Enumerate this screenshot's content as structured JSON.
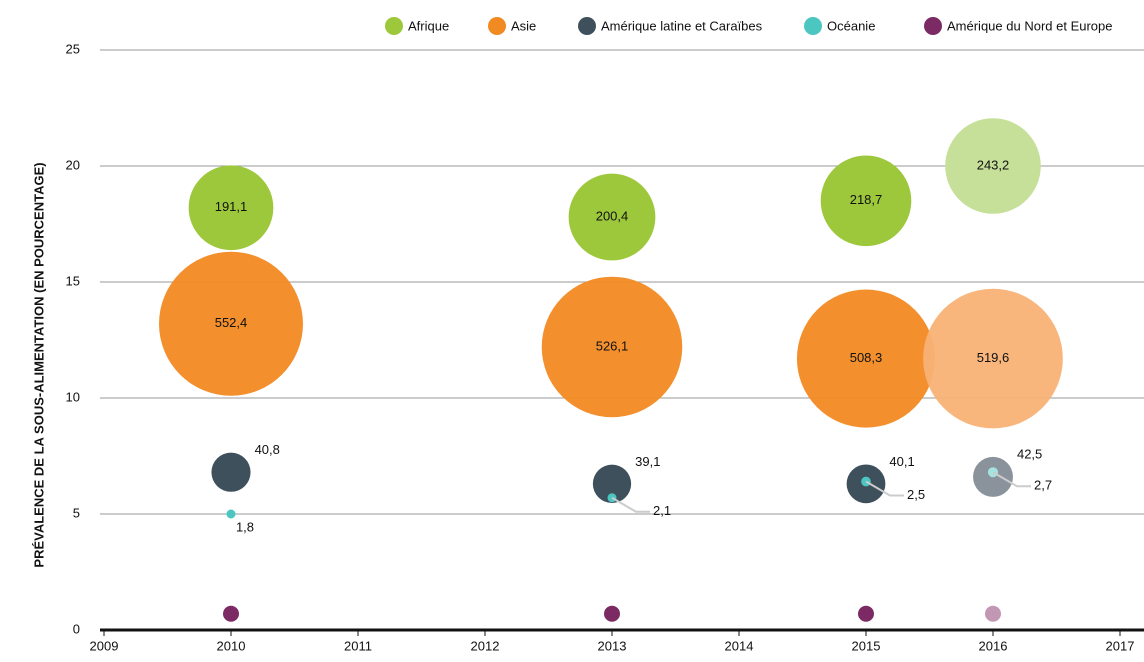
{
  "chart_data": {
    "type": "bubble",
    "y_label": "PRÉVALENCE DE LA SOUS-ALIMENTATION (EN POURCENTAGE)",
    "x": [
      2010,
      2013,
      2015,
      2016
    ],
    "xlim": [
      2009,
      2017
    ],
    "xticks": [
      2009,
      2010,
      2011,
      2012,
      2013,
      2014,
      2015,
      2016,
      2017
    ],
    "ylim": [
      0,
      25
    ],
    "yticks": [
      0,
      5,
      10,
      15,
      20,
      25
    ],
    "grid": true,
    "legend": "top",
    "series": [
      {
        "name": "Afrique",
        "color": "#9dc83c",
        "colors": [
          "#9dc83c",
          "#9dc83c",
          "#9dc83c",
          "#c6e09a"
        ],
        "values": [
          18.2,
          17.8,
          18.5,
          20.0
        ],
        "sizes": [
          191.1,
          200.4,
          218.7,
          243.2
        ],
        "size_labels": [
          "191,1",
          "200,4",
          "218,7",
          "243,2"
        ]
      },
      {
        "name": "Asie",
        "color": "#f28a22",
        "colors": [
          "#f28a22",
          "#f28a22",
          "#f28a22",
          "#f8b276"
        ],
        "values": [
          13.2,
          12.2,
          11.7,
          11.7
        ],
        "sizes": [
          552.4,
          526.1,
          508.3,
          519.6
        ],
        "size_labels": [
          "552,4",
          "526,1",
          "508,3",
          "519,6"
        ]
      },
      {
        "name": "Amérique latine et Caraïbes",
        "color": "#3f505d",
        "colors": [
          "#3f505d",
          "#3f505d",
          "#3f505d",
          "#8a939b"
        ],
        "values": [
          6.8,
          6.3,
          6.3,
          6.6
        ],
        "sizes": [
          40.8,
          39.1,
          40.1,
          42.5
        ],
        "size_labels": [
          "40,8",
          "39,1",
          "40,1",
          "42,5"
        ]
      },
      {
        "name": "Océanie",
        "color": "#4cc6c0",
        "colors": [
          "#4cc6c0",
          "#4cc6c0",
          "#4cc6c0",
          "#a6e3e0"
        ],
        "values": [
          5.0,
          5.7,
          6.4,
          6.8
        ],
        "sizes": [
          1.8,
          2.1,
          2.5,
          2.7
        ],
        "size_labels": [
          "1,8",
          "2,1",
          "2,5",
          "2,7"
        ]
      },
      {
        "name": "Amérique du Nord et Europe",
        "color": "#7c2a63",
        "colors": [
          "#7c2a63",
          "#7c2a63",
          "#7c2a63",
          "#c197b3"
        ],
        "values": [
          0.7,
          0.7,
          0.7,
          0.7
        ]
      }
    ]
  }
}
